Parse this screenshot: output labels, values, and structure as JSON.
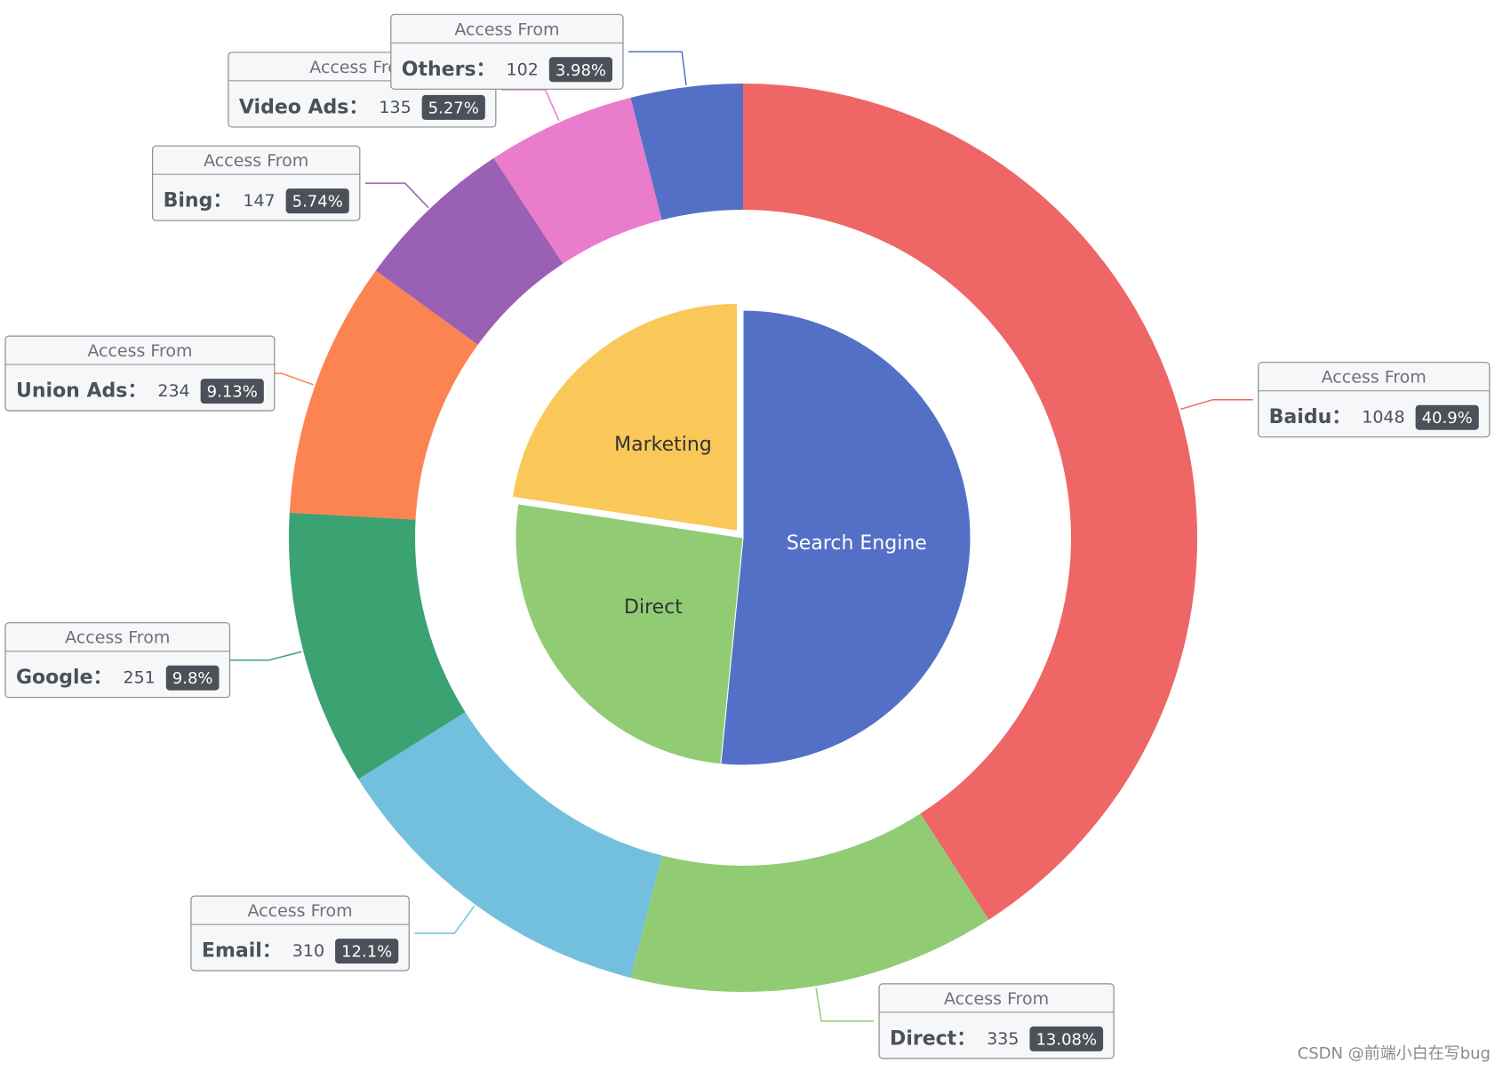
{
  "chart_data": {
    "type": "pie",
    "series": [
      {
        "name": "",
        "kind": "pie-inner",
        "data": [
          {
            "name": "Search Engine",
            "value": 1548,
            "color": "#5470c6",
            "label_color": "#ffffff"
          },
          {
            "name": "Direct",
            "value": 775,
            "color": "#91cc75",
            "label_color": "#333333"
          },
          {
            "name": "Marketing",
            "value": 679,
            "color": "#fac858",
            "label_color": "#333333",
            "selected": true
          }
        ]
      },
      {
        "name": "Access From",
        "kind": "ring-outer",
        "data": [
          {
            "name": "Baidu",
            "value": 1048,
            "percent": "40.9%",
            "color": "#ee6666"
          },
          {
            "name": "Direct",
            "value": 335,
            "percent": "13.08%",
            "color": "#91cc75"
          },
          {
            "name": "Email",
            "value": 310,
            "percent": "12.1%",
            "color": "#73c0de"
          },
          {
            "name": "Google",
            "value": 251,
            "percent": "9.8%",
            "color": "#3ba272"
          },
          {
            "name": "Union Ads",
            "value": 234,
            "percent": "9.13%",
            "color": "#fc8452"
          },
          {
            "name": "Bing",
            "value": 147,
            "percent": "5.74%",
            "color": "#9a60b4"
          },
          {
            "name": "Video Ads",
            "value": 135,
            "percent": "5.27%",
            "color": "#ea7ccc"
          },
          {
            "name": "Others",
            "value": 102,
            "percent": "3.98%",
            "color": "#5470c6"
          }
        ]
      }
    ],
    "label_header": "Access From",
    "name_value_separator": "："
  },
  "watermark": "CSDN @前端小白在写bug"
}
